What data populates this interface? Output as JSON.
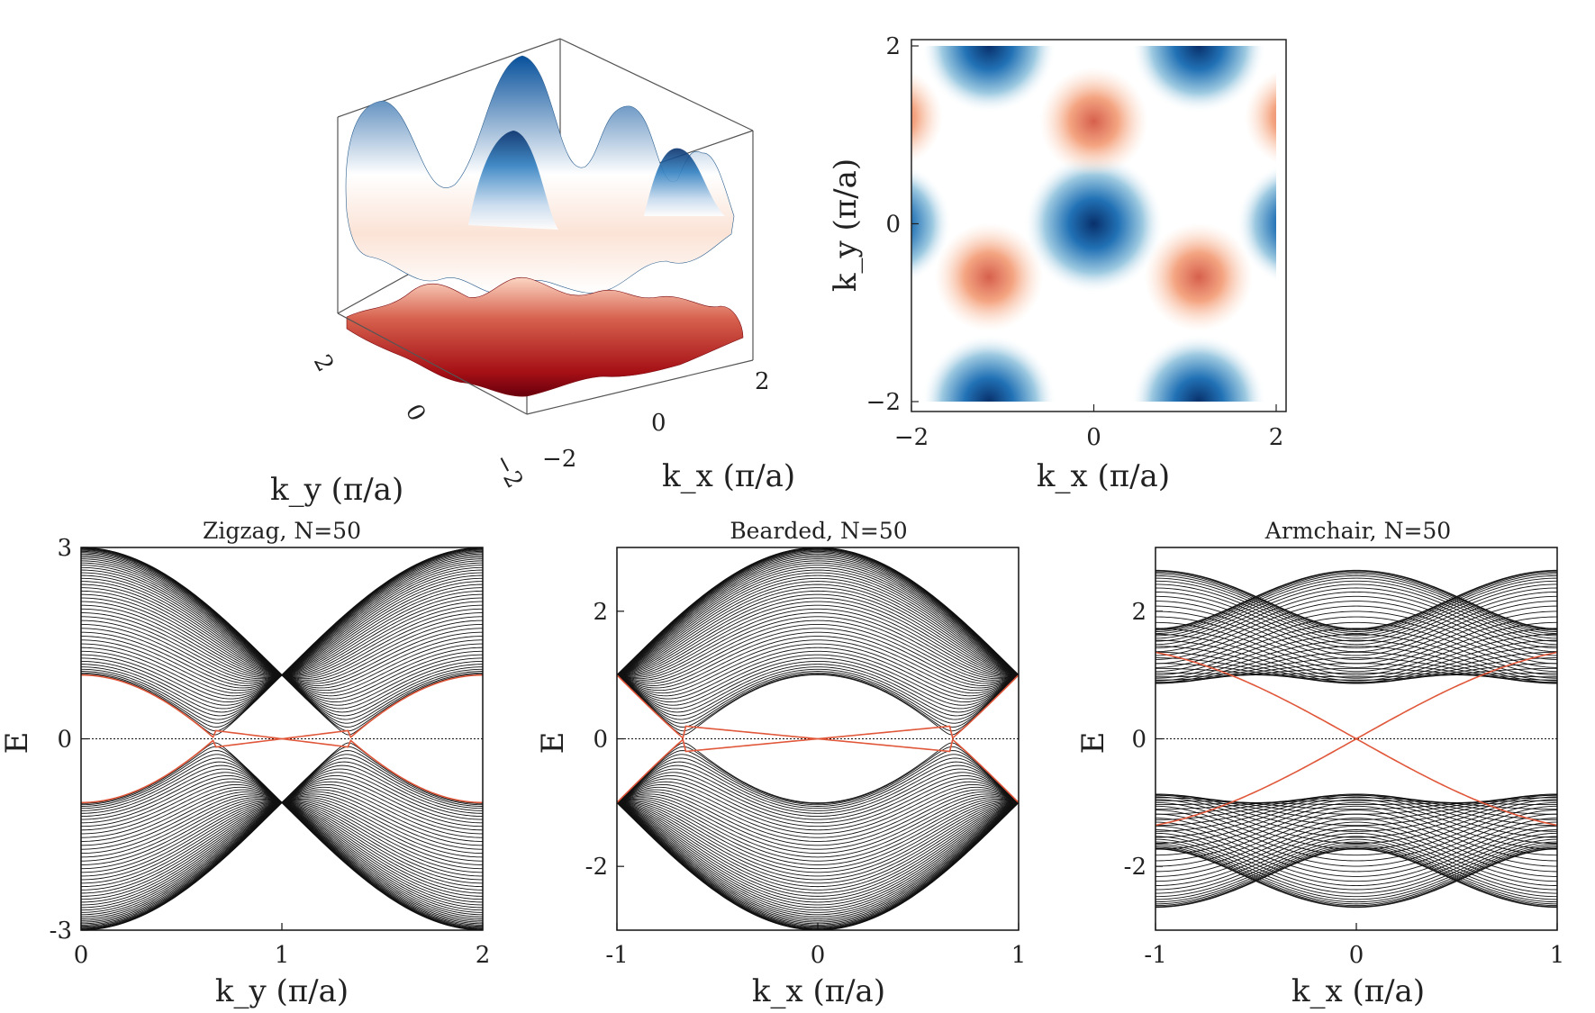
{
  "chart_data": [
    {
      "type": "surface",
      "xlabel": "k_x (π/a)",
      "ylabel": "k_y (π/a)",
      "xticks": [
        "−2",
        "0",
        "2"
      ],
      "yticks": [
        "2",
        "0",
        "−2"
      ],
      "xlim": [
        -2,
        2
      ],
      "ylim": [
        -2,
        2
      ],
      "colors": {
        "high": "#08519c",
        "mid": "#ffffff",
        "low": "#a50f15"
      }
    },
    {
      "type": "heatmap",
      "xlabel": "k_x (π/a)",
      "ylabel": "k_y (π/a)",
      "xticks": [
        "−2",
        "0",
        "2"
      ],
      "yticks": [
        "2",
        "0",
        "−2"
      ],
      "xlim": [
        -2,
        2
      ],
      "ylim": [
        -2,
        2
      ],
      "colors": {
        "high": "#08519c",
        "mid": "#ffffff",
        "low": "#d6604d"
      }
    },
    {
      "type": "line",
      "title": "Zigzag, N=50",
      "xlabel": "k_y (π/a)",
      "ylabel": "E",
      "xlim": [
        0,
        2
      ],
      "ylim": [
        -3,
        3
      ],
      "xticks": [
        "0",
        "1",
        "2"
      ],
      "yticks": [
        "3",
        "0",
        "-3"
      ],
      "bulk_bands": 50,
      "edge_state_color": "#e0573a"
    },
    {
      "type": "line",
      "title": "Bearded, N=50",
      "xlabel": "k_x (π/a)",
      "ylabel": "E",
      "xlim": [
        -1,
        1
      ],
      "ylim": [
        -3,
        3
      ],
      "xticks": [
        "-1",
        "0",
        "1"
      ],
      "yticks": [
        "2",
        "0",
        "-2"
      ],
      "bulk_bands": 50,
      "edge_state_color": "#e0573a"
    },
    {
      "type": "line",
      "title": "Armchair, N=50",
      "xlabel": "k_x (π/a)",
      "ylabel": "E",
      "xlim": [
        -1,
        1
      ],
      "ylim": [
        -3,
        3
      ],
      "xticks": [
        "-1",
        "0",
        "1"
      ],
      "yticks": [
        "2",
        "0",
        "-2"
      ],
      "bulk_bands": 50,
      "edge_state_color": "#e0573a"
    }
  ]
}
